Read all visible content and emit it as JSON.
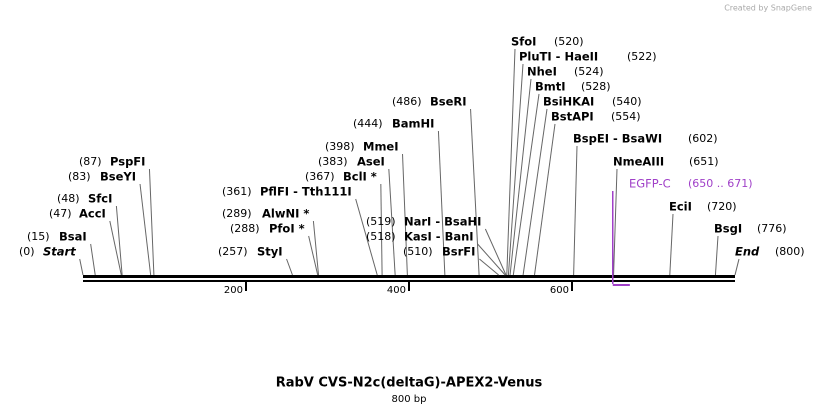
{
  "header": {
    "credit": "Created by SnapGene"
  },
  "map": {
    "features": [
      {
        "name": "Start",
        "position": "(0)"
      },
      {
        "name": "BsaI",
        "position": "(15)"
      },
      {
        "name": "AccI",
        "position": "(47)"
      },
      {
        "name": "SfcI",
        "position": "(48)"
      },
      {
        "name": "BseYI",
        "position": "(83)"
      },
      {
        "name": "PspFI",
        "position": "(87)"
      },
      {
        "name": "PflFI  - Tth111I",
        "position": "(361)"
      },
      {
        "name": "AlwNI *",
        "position": "(289)"
      },
      {
        "name": "PfoI *",
        "position": "(288)"
      },
      {
        "name": "StyI",
        "position": "(257)"
      },
      {
        "name": "BclI *",
        "position": "(367)"
      },
      {
        "name": "AseI",
        "position": "(383)"
      },
      {
        "name": "MmeI",
        "position": "(398)"
      },
      {
        "name": "BamHI",
        "position": "(444)"
      },
      {
        "name": "BseRI",
        "position": "(486)"
      },
      {
        "name": "NarI  - BsaHI",
        "position": "(519)"
      },
      {
        "name": "KasI  - BanI",
        "position": "(518)"
      },
      {
        "name": "BsrFI",
        "position": "(510)"
      },
      {
        "name": "SfoI",
        "position": "(520)"
      },
      {
        "name": "PluTI  - HaeII",
        "position": "(522)"
      },
      {
        "name": "NheI",
        "position": "(524)"
      },
      {
        "name": "BmtI",
        "position": "(528)"
      },
      {
        "name": "BsiHKAI",
        "position": "(540)"
      },
      {
        "name": "BstAPI",
        "position": "(554)"
      },
      {
        "name": "BspEI  - BsaWI",
        "position": "(602)"
      },
      {
        "name": "NmeAIII",
        "position": "(651)"
      },
      {
        "name": "EGFP-C",
        "position": "(650 .. 671)"
      },
      {
        "name": "EciI",
        "position": "(720)"
      },
      {
        "name": "BsgI",
        "position": "(776)"
      },
      {
        "name": "End",
        "position": "(800)"
      }
    ],
    "ticks": [
      "200",
      "400",
      "600"
    ]
  },
  "title": "RabV CVS-N2c(deltaG)-APEX2-Venus",
  "length": "800 bp"
}
